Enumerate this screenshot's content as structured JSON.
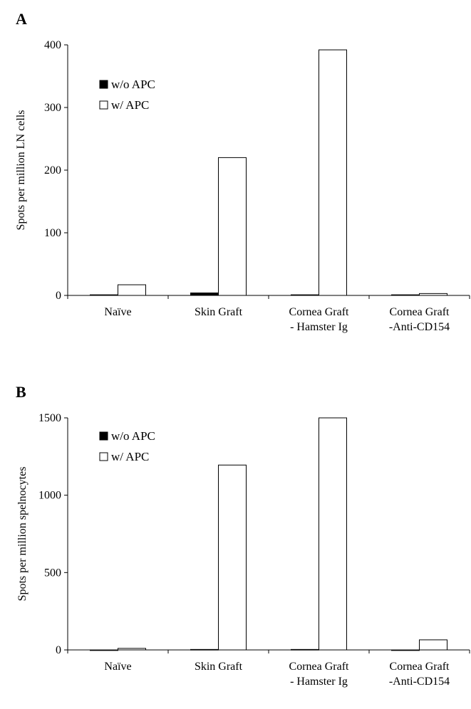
{
  "chart_data": [
    {
      "type": "bar",
      "panel_label": "A",
      "ylabel": "Spots per million LN cells",
      "ylim": [
        0,
        400
      ],
      "yticks": [
        0,
        100,
        200,
        300,
        400
      ],
      "categories": [
        [
          "Naïve"
        ],
        [
          "Skin Graft"
        ],
        [
          "Cornea Graft",
          "- Hamster Ig"
        ],
        [
          "Cornea Graft",
          "-Anti-CD154"
        ]
      ],
      "series": [
        {
          "name": "w/o APC",
          "color": "#000000",
          "values": [
            1,
            4,
            1,
            1
          ]
        },
        {
          "name": "w/ APC",
          "color": "#ffffff",
          "values": [
            17,
            220,
            392,
            3
          ]
        }
      ],
      "legend": "top-left",
      "grid": false
    },
    {
      "type": "bar",
      "panel_label": "B",
      "ylabel": "Spots per million spelnocytes",
      "ylim": [
        0,
        1500
      ],
      "yticks": [
        0,
        500,
        1000,
        1500
      ],
      "categories": [
        [
          "Naïve"
        ],
        [
          "Skin Graft"
        ],
        [
          "Cornea Graft",
          "- Hamster Ig"
        ],
        [
          "Cornea Graft",
          "-Anti-CD154"
        ]
      ],
      "series": [
        {
          "name": "w/o APC",
          "color": "#000000",
          "values": [
            0,
            3,
            3,
            0
          ]
        },
        {
          "name": "w/ APC",
          "color": "#ffffff",
          "values": [
            10,
            1195,
            1500,
            65
          ]
        }
      ],
      "legend": "top-left",
      "grid": false
    }
  ]
}
